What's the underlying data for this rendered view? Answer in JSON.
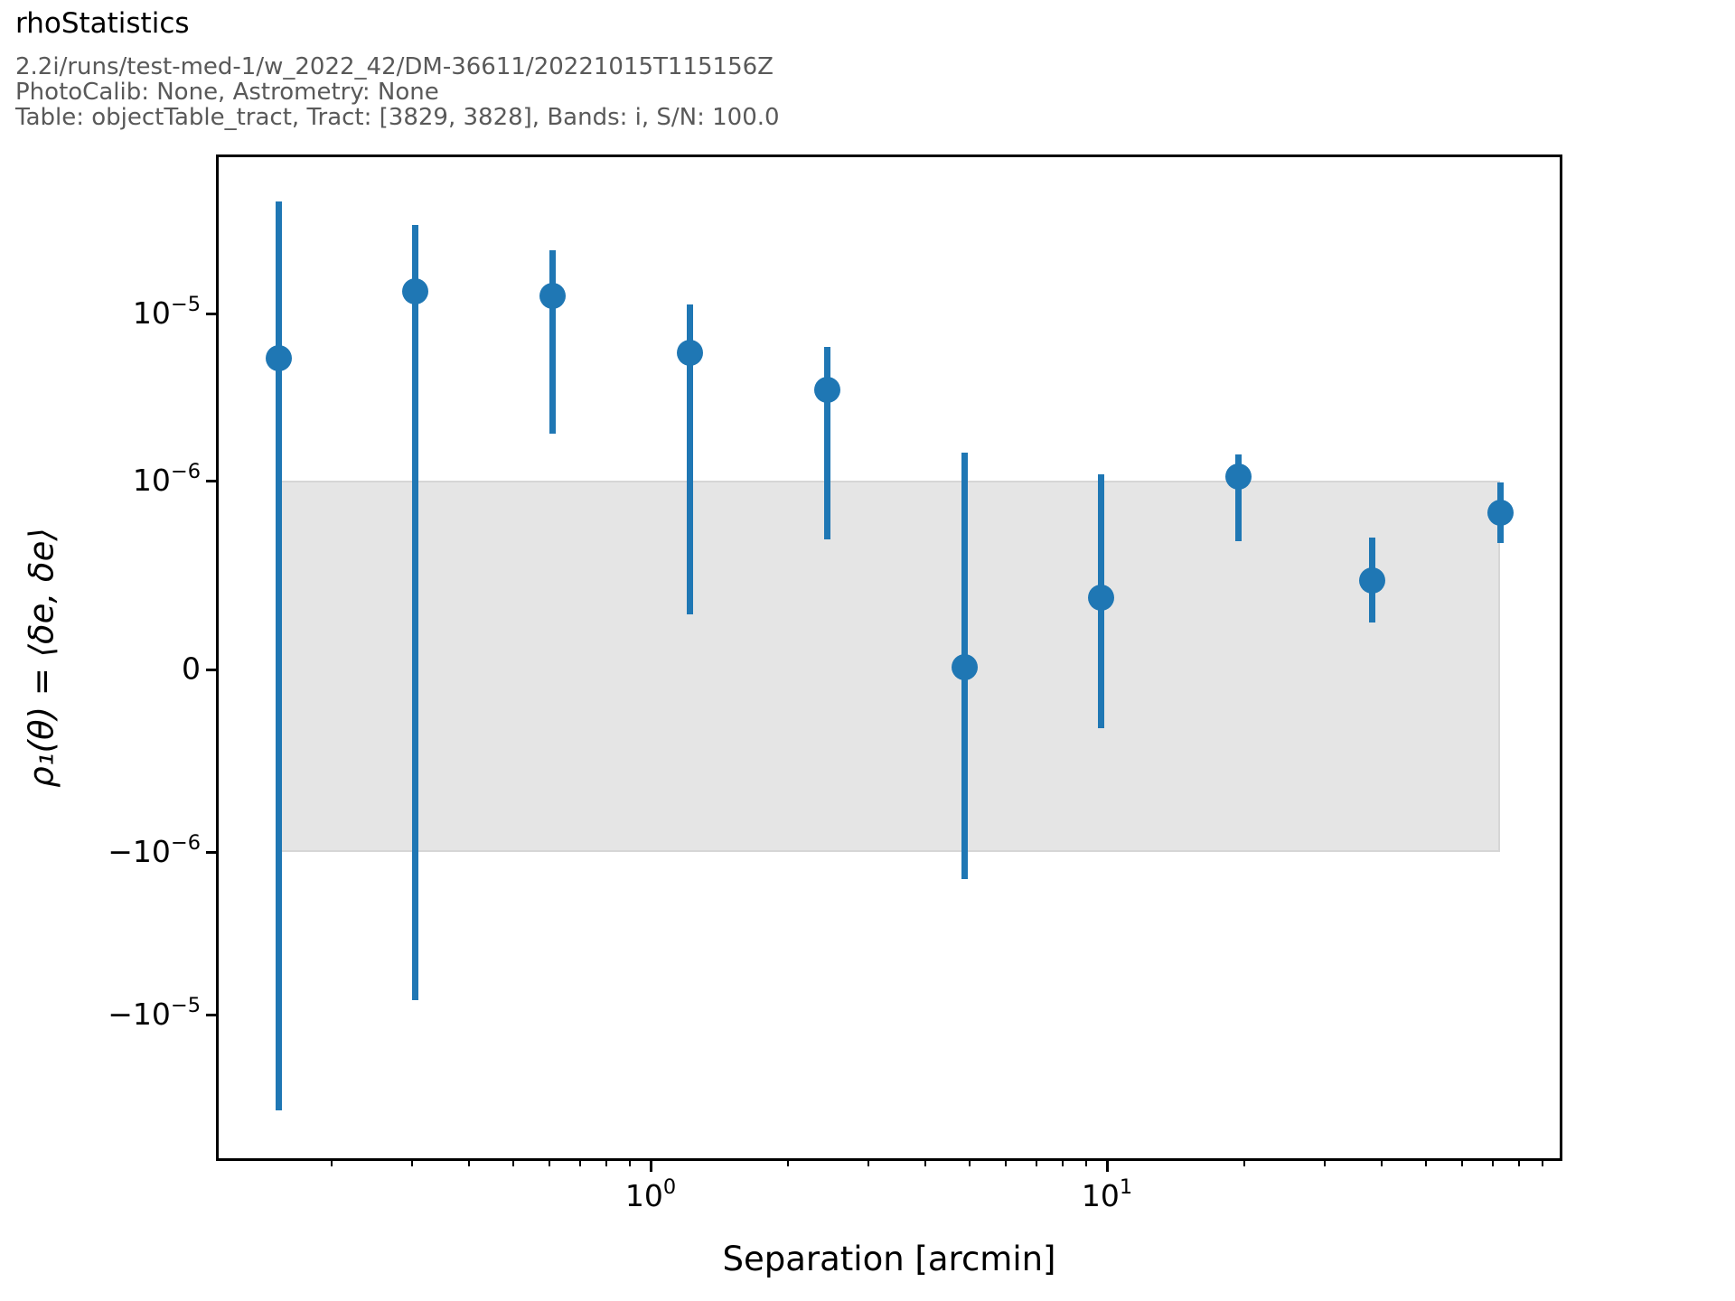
{
  "header": {
    "title": "rhoStatistics",
    "subtitle1": "2.2i/runs/test-med-1/w_2022_42/DM-36611/20221015T115156Z",
    "subtitle2": "PhotoCalib: None, Astrometry: None",
    "subtitle3": "Table: objectTable_tract, Tract: [3829, 3828], Bands: i, S/N: 100.0"
  },
  "chart_data": {
    "type": "scatter",
    "title": "rhoStatistics",
    "xlabel": "Separation [arcmin]",
    "ylabel": "ρ₁(θ) = ⟨δe, δe⟩",
    "x_scale": "log",
    "y_scale": "symlog",
    "y_linthresh": 1e-06,
    "xlim": [
      0.11,
      99
    ],
    "ylim": [
      -7.8e-05,
      8.7e-05
    ],
    "grid": false,
    "legend": "none",
    "marker_color": "#1f77b4",
    "x": [
      0.153,
      0.305,
      0.611,
      1.22,
      2.44,
      4.87,
      9.69,
      19.4,
      38.2,
      72.7
    ],
    "y": [
      5.4e-06,
      1.36e-05,
      1.27e-05,
      5.8e-06,
      3.5e-06,
      1e-08,
      3.8e-07,
      1.06e-06,
      4.7e-07,
      8.3e-07
    ],
    "yerr_low": [
      -3.9e-05,
      -8.2e-06,
      1.9e-06,
      2.9e-07,
      6.9e-07,
      -1.47e-06,
      -3.2e-07,
      6.8e-07,
      2.5e-07,
      6.7e-07
    ],
    "yerr_high": [
      4.7e-05,
      3.4e-05,
      2.4e-05,
      1.13e-05,
      6.3e-06,
      1.47e-06,
      1.09e-06,
      1.43e-06,
      7e-07,
      9.9e-07
    ],
    "band": {
      "x_range": [
        0.153,
        72.7
      ],
      "y_range": [
        -1e-06,
        1e-06
      ],
      "color": "#e5e5e5"
    },
    "x_ticks": [
      {
        "value": 1,
        "base": "10",
        "exp": "0"
      },
      {
        "value": 10,
        "base": "10",
        "exp": "1"
      }
    ],
    "y_ticks": [
      {
        "value": 1e-05,
        "base": "10",
        "exp": "−5"
      },
      {
        "value": 1e-06,
        "base": "10",
        "exp": "−6"
      },
      {
        "value": 0,
        "text": "0"
      },
      {
        "value": -1e-06,
        "base": "−10",
        "exp": "−6"
      },
      {
        "value": -1e-05,
        "base": "−10",
        "exp": "−5"
      }
    ]
  }
}
